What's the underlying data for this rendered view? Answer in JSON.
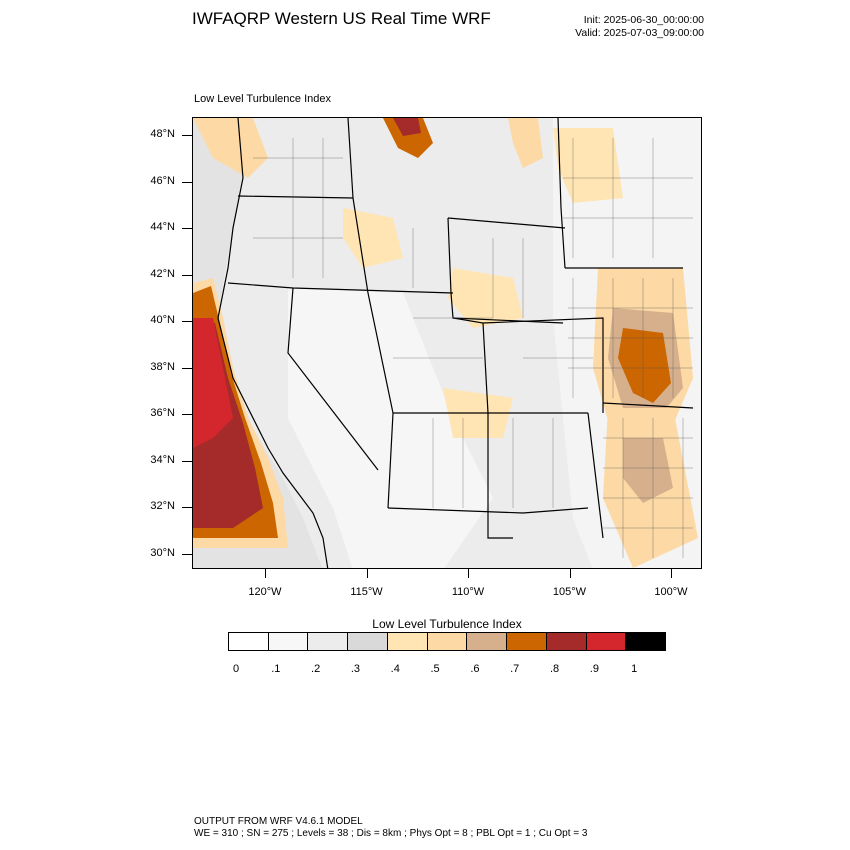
{
  "header": {
    "title": "IWFAQRP Western US Real Time WRF",
    "init": "Init: 2025-06-30_00:00:00",
    "valid": "Valid: 2025-07-03_09:00:00"
  },
  "map": {
    "field_label": "Low Level Turbulence Index",
    "lat_labels": [
      "48°N",
      "46°N",
      "44°N",
      "42°N",
      "40°N",
      "38°N",
      "36°N",
      "34°N",
      "32°N",
      "30°N"
    ],
    "lon_labels": [
      "120°W",
      "115°W",
      "110°W",
      "105°W",
      "100°W"
    ]
  },
  "colorbar": {
    "title": "Low Level Turbulence Index",
    "labels": [
      "0",
      ".1",
      ".2",
      ".3",
      ".4",
      ".5",
      ".6",
      ".7",
      ".8",
      ".9",
      "1"
    ],
    "colors": [
      "#ffffff",
      "#f7f7f7",
      "#ececec",
      "#d9d9d9",
      "#ffe5b3",
      "#fcd9a5",
      "#d6b08c",
      "#cc6600",
      "#a52a2a",
      "#d4262d",
      "#000000"
    ]
  },
  "footer": {
    "line1": "OUTPUT FROM WRF V4.6.1 MODEL",
    "line2": "WE = 310 ; SN = 275 ; Levels = 38 ; Dis = 8km ; Phys Opt = 8 ; PBL Opt = 1 ; Cu Opt = 3"
  }
}
